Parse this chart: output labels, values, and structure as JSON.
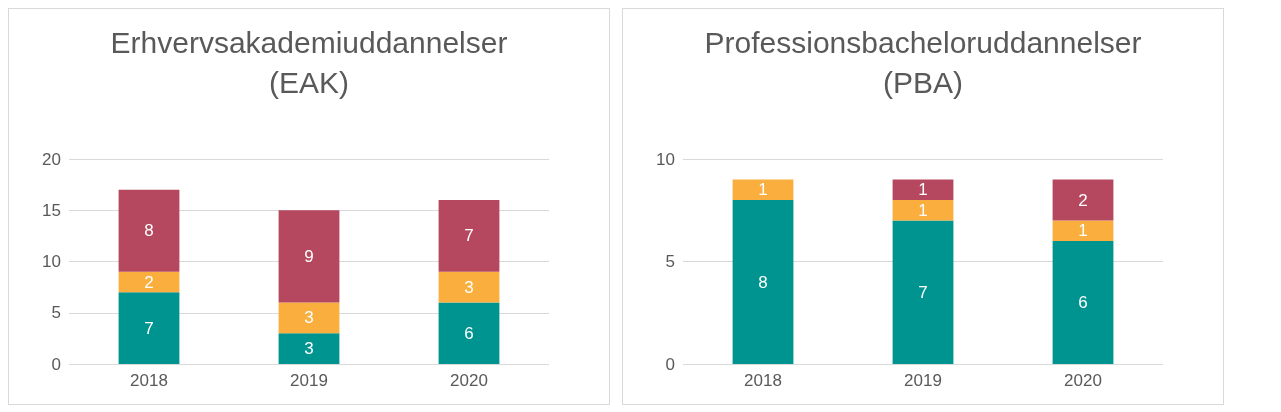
{
  "chart_data": [
    {
      "type": "bar",
      "title": "Erhvervsakademiuddannelser\n(EAK)",
      "categories": [
        "2018",
        "2019",
        "2020"
      ],
      "stacked": true,
      "data_labels": true,
      "grid": "y",
      "ylim": [
        0,
        20
      ],
      "yticks": [
        0,
        5,
        10,
        15,
        20
      ],
      "series": [
        {
          "color": "#009490",
          "values": [
            7,
            3,
            6
          ]
        },
        {
          "color": "#f9ae3d",
          "values": [
            2,
            3,
            3
          ]
        },
        {
          "color": "#b5485f",
          "values": [
            8,
            9,
            7
          ]
        }
      ]
    },
    {
      "type": "bar",
      "title": "Professionsbacheloruddannelser\n(PBA)",
      "categories": [
        "2018",
        "2019",
        "2020"
      ],
      "stacked": true,
      "data_labels": true,
      "grid": "y",
      "ylim": [
        0,
        10
      ],
      "yticks": [
        0,
        5,
        10
      ],
      "series": [
        {
          "color": "#009490",
          "values": [
            8,
            7,
            6
          ]
        },
        {
          "color": "#f9ae3d",
          "values": [
            1,
            1,
            1
          ]
        },
        {
          "color": "#b5485f",
          "values": [
            null,
            1,
            2
          ]
        }
      ]
    }
  ]
}
